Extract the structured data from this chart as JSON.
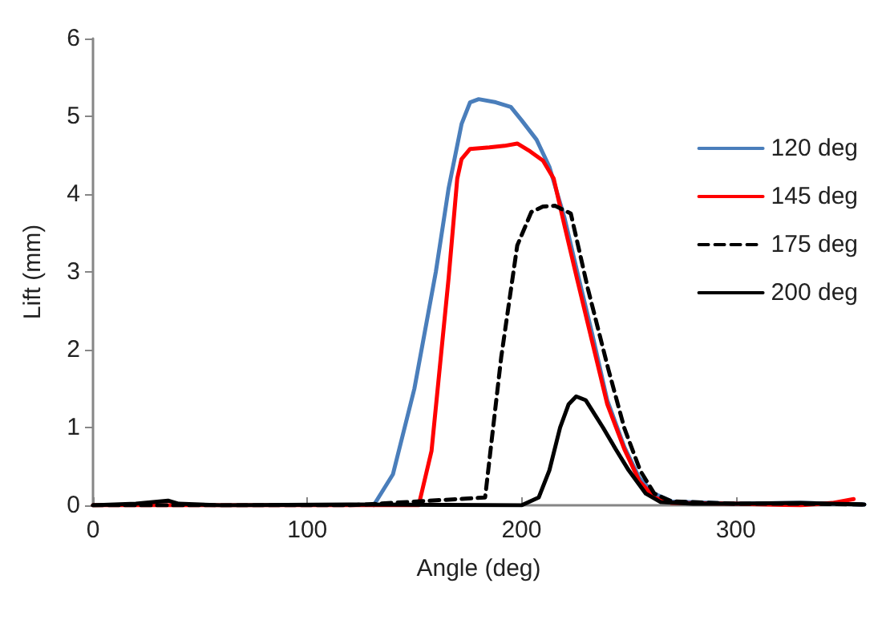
{
  "chart_data": {
    "type": "line",
    "xlabel": "Angle (deg)",
    "ylabel": "Lift (mm)",
    "xlim": [
      0,
      360
    ],
    "xticks": [
      0,
      100,
      200,
      300
    ],
    "ylim": [
      0,
      6
    ],
    "yticks": [
      0,
      1,
      2,
      3,
      4,
      5,
      6
    ],
    "grid": false,
    "legend": "right",
    "marker": "none",
    "series": [
      {
        "name": "120 deg",
        "color": "#4a7ebb",
        "line_style": "solid",
        "x": [
          131,
          140,
          150,
          160,
          166,
          172,
          176,
          180,
          188,
          195,
          200,
          207,
          213,
          220,
          226,
          233,
          240,
          248,
          255,
          262,
          270,
          300,
          330,
          360
        ],
        "values": [
          0,
          0.4,
          1.5,
          3.0,
          4.08,
          4.9,
          5.18,
          5.22,
          5.18,
          5.12,
          4.95,
          4.7,
          4.35,
          3.7,
          3.0,
          2.2,
          1.35,
          0.75,
          0.35,
          0.15,
          0.05,
          0.02,
          0.03,
          0.01
        ]
      },
      {
        "name": "145 deg",
        "color": "#ff0000",
        "line_style": "solid",
        "x": [
          0,
          60,
          120,
          152,
          158,
          166,
          170,
          172,
          176,
          185,
          192,
          198,
          204,
          210,
          215,
          220,
          226,
          233,
          240,
          248,
          255,
          262,
          270,
          300,
          330,
          345,
          355
        ],
        "values": [
          0,
          0,
          0,
          0,
          0.7,
          2.93,
          4.2,
          4.45,
          4.58,
          4.6,
          4.62,
          4.65,
          4.55,
          4.43,
          4.2,
          3.6,
          2.9,
          2.1,
          1.3,
          0.72,
          0.31,
          0.1,
          0.03,
          0.02,
          0,
          0.03,
          0.08
        ]
      },
      {
        "name": "175 deg",
        "color": "#000000",
        "line_style": "dashed",
        "x": [
          0,
          60,
          120,
          183,
          190.5,
          198,
          204.6,
          210,
          215.6,
          223,
          231,
          240.5,
          248,
          255.5,
          262,
          270,
          300,
          330,
          360
        ],
        "values": [
          0,
          0,
          0,
          0.1,
          1.9,
          3.34,
          3.77,
          3.84,
          3.85,
          3.75,
          2.78,
          1.75,
          0.99,
          0.44,
          0.15,
          0.05,
          0.02,
          0.02,
          0.01
        ]
      },
      {
        "name": "200 deg",
        "color": "#000000",
        "line_style": "solid",
        "x": [
          0,
          20,
          35,
          40,
          60,
          120,
          200,
          208,
          213,
          218,
          222,
          225.5,
          230,
          238,
          244,
          250,
          258,
          265,
          280,
          300,
          330,
          360
        ],
        "values": [
          0,
          0.02,
          0.06,
          0.02,
          0,
          0.01,
          0,
          0.1,
          0.45,
          1.0,
          1.3,
          1.4,
          1.35,
          1.0,
          0.72,
          0.45,
          0.15,
          0.04,
          0.02,
          0.02,
          0.03,
          0.01
        ]
      }
    ]
  }
}
